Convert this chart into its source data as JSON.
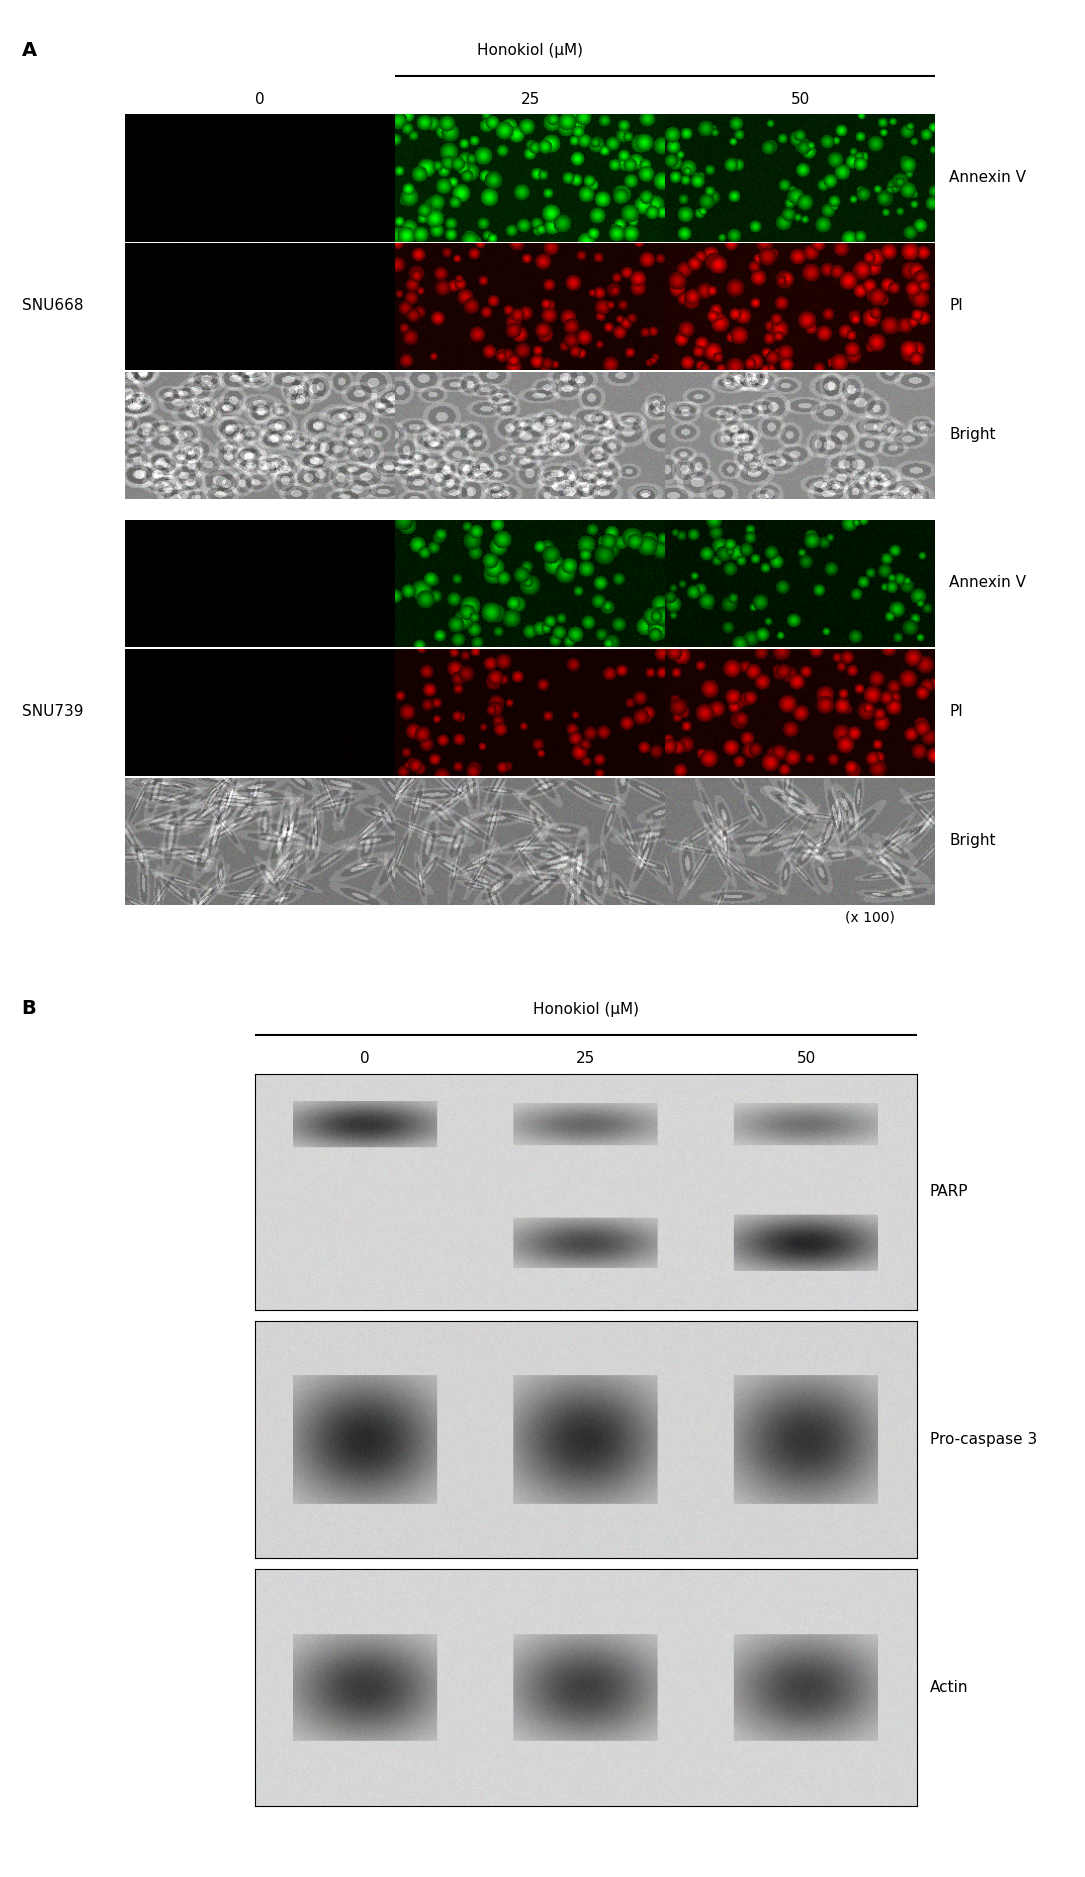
{
  "panel_A_label": "A",
  "panel_B_label": "B",
  "honokiol_label": "Honokiol (μM)",
  "concentrations": [
    "0",
    "25",
    "50"
  ],
  "cell_lines": [
    "SNU668",
    "SNU739"
  ],
  "row_labels_A": [
    "Annexin V",
    "PI",
    "Bright"
  ],
  "magnification": "(x 100)",
  "western_labels": [
    "PARP",
    "Pro-caspase 3",
    "Actin"
  ],
  "background_color": "#ffffff",
  "fig_width": 10.85,
  "fig_height": 18.77,
  "font_size_label": 11,
  "font_size_title": 11,
  "font_size_panel": 14,
  "font_size_mag": 10
}
